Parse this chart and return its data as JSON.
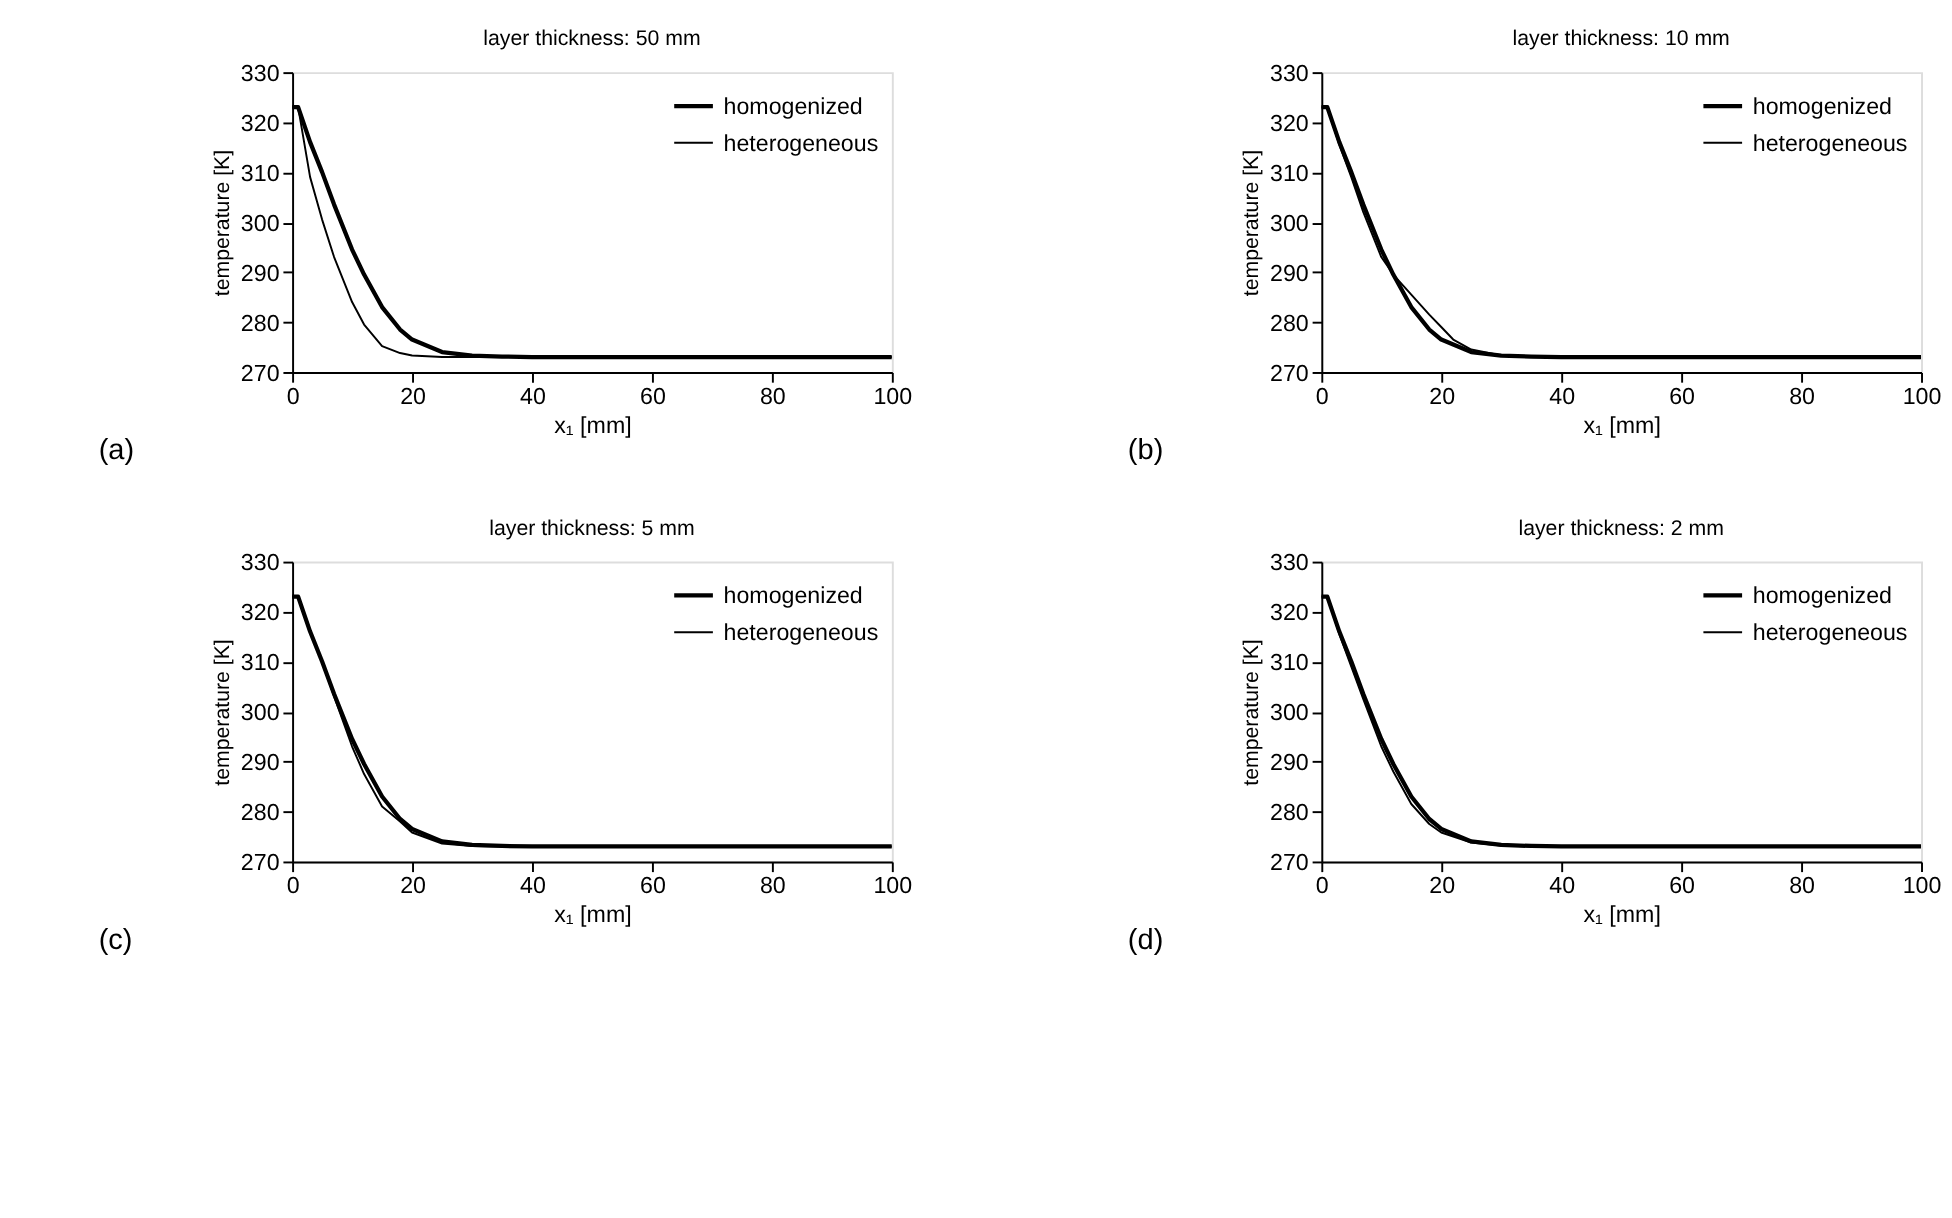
{
  "chart_data": [
    {
      "type": "line",
      "title": "layer thickness: 50 mm",
      "xlabel": "x₁ [mm]",
      "ylabel": "temperature [K]",
      "xlim": [
        0,
        100
      ],
      "ylim": [
        270,
        330
      ],
      "xticks": [
        0,
        20,
        40,
        60,
        80,
        100
      ],
      "yticks": [
        270,
        280,
        290,
        300,
        310,
        320,
        330
      ],
      "grid": false,
      "legend": "top right",
      "annotations": [
        "(a)"
      ],
      "series": [
        {
          "name": "homogenized",
          "color": "#000000",
          "x": [
            0,
            1,
            3,
            5,
            7,
            10,
            12,
            15,
            18,
            20,
            25,
            30,
            35,
            40,
            100
          ],
          "values": [
            323,
            323,
            316,
            310,
            303.5,
            294.5,
            289.5,
            283,
            278.5,
            276.5,
            274,
            273.3,
            273.1,
            273,
            273
          ]
        },
        {
          "name": "heterogeneous",
          "color": "#000000",
          "x": [
            0,
            1,
            3,
            5,
            7,
            10,
            12,
            15,
            18,
            20,
            25,
            30,
            100
          ],
          "values": [
            323,
            323,
            309,
            300.5,
            293,
            284,
            279.5,
            275.2,
            273.8,
            273.3,
            273,
            273,
            273
          ]
        }
      ]
    },
    {
      "type": "line",
      "title": "layer thickness: 10 mm",
      "xlabel": "x₁ [mm]",
      "ylabel": "temperature [K]",
      "xlim": [
        0,
        100
      ],
      "ylim": [
        270,
        330
      ],
      "xticks": [
        0,
        20,
        40,
        60,
        80,
        100
      ],
      "yticks": [
        270,
        280,
        290,
        300,
        310,
        320,
        330
      ],
      "grid": false,
      "legend": "top right",
      "annotations": [
        "(b)"
      ],
      "series": [
        {
          "name": "homogenized",
          "color": "#000000",
          "x": [
            0,
            1,
            3,
            5,
            7,
            10,
            12,
            15,
            18,
            20,
            25,
            30,
            35,
            40,
            100
          ],
          "values": [
            323,
            323,
            316,
            310,
            303.5,
            294.5,
            289.5,
            283,
            278.5,
            276.5,
            274,
            273.3,
            273.1,
            273,
            273
          ]
        },
        {
          "name": "heterogeneous",
          "color": "#000000",
          "x": [
            0,
            1,
            3,
            5,
            7,
            10,
            12,
            15,
            18,
            20,
            22,
            25,
            30,
            35,
            100
          ],
          "values": [
            323,
            323,
            315.5,
            309,
            302,
            293,
            289.5,
            285.5,
            281.5,
            279,
            276.5,
            274.5,
            273.3,
            273.1,
            273
          ]
        }
      ]
    },
    {
      "type": "line",
      "title": "layer thickness: 5 mm",
      "xlabel": "x₁ [mm]",
      "ylabel": "temperature [K]",
      "xlim": [
        0,
        100
      ],
      "ylim": [
        270,
        330
      ],
      "xticks": [
        0,
        20,
        40,
        60,
        80,
        100
      ],
      "yticks": [
        270,
        280,
        290,
        300,
        310,
        320,
        330
      ],
      "grid": false,
      "legend": "top right",
      "annotations": [
        "(c)"
      ],
      "series": [
        {
          "name": "homogenized",
          "color": "#000000",
          "x": [
            0,
            1,
            3,
            5,
            7,
            10,
            12,
            15,
            18,
            20,
            25,
            30,
            35,
            40,
            100
          ],
          "values": [
            323,
            323,
            316,
            310,
            303.5,
            294.5,
            289.5,
            283,
            278.5,
            276.5,
            274,
            273.3,
            273.1,
            273,
            273
          ]
        },
        {
          "name": "heterogeneous",
          "color": "#000000",
          "x": [
            0,
            1,
            3,
            5,
            7,
            10,
            12,
            15,
            18,
            20,
            25,
            30,
            35,
            100
          ],
          "values": [
            323,
            323,
            316,
            310,
            303,
            293,
            287.5,
            281,
            278,
            275.8,
            273.6,
            273.1,
            273,
            273
          ]
        }
      ]
    },
    {
      "type": "line",
      "title": "layer thickness: 2 mm",
      "xlabel": "x₁ [mm]",
      "ylabel": "temperature [K]",
      "xlim": [
        0,
        100
      ],
      "ylim": [
        270,
        330
      ],
      "xticks": [
        0,
        20,
        40,
        60,
        80,
        100
      ],
      "yticks": [
        270,
        280,
        290,
        300,
        310,
        320,
        330
      ],
      "grid": false,
      "legend": "top right",
      "annotations": [
        "(d)"
      ],
      "series": [
        {
          "name": "homogenized",
          "color": "#000000",
          "x": [
            0,
            1,
            3,
            5,
            7,
            10,
            12,
            15,
            18,
            20,
            25,
            30,
            35,
            40,
            100
          ],
          "values": [
            323,
            323,
            316,
            310,
            303.5,
            294.5,
            289.5,
            283,
            278.5,
            276.5,
            274,
            273.3,
            273.1,
            273,
            273
          ]
        },
        {
          "name": "heterogeneous",
          "color": "#000000",
          "x": [
            0,
            1,
            3,
            5,
            7,
            10,
            12,
            15,
            18,
            20,
            25,
            30,
            35,
            100
          ],
          "values": [
            323,
            323,
            315.5,
            309,
            302.5,
            293,
            288,
            281.5,
            277.5,
            275.8,
            273.8,
            273.2,
            273,
            273
          ]
        }
      ]
    }
  ]
}
